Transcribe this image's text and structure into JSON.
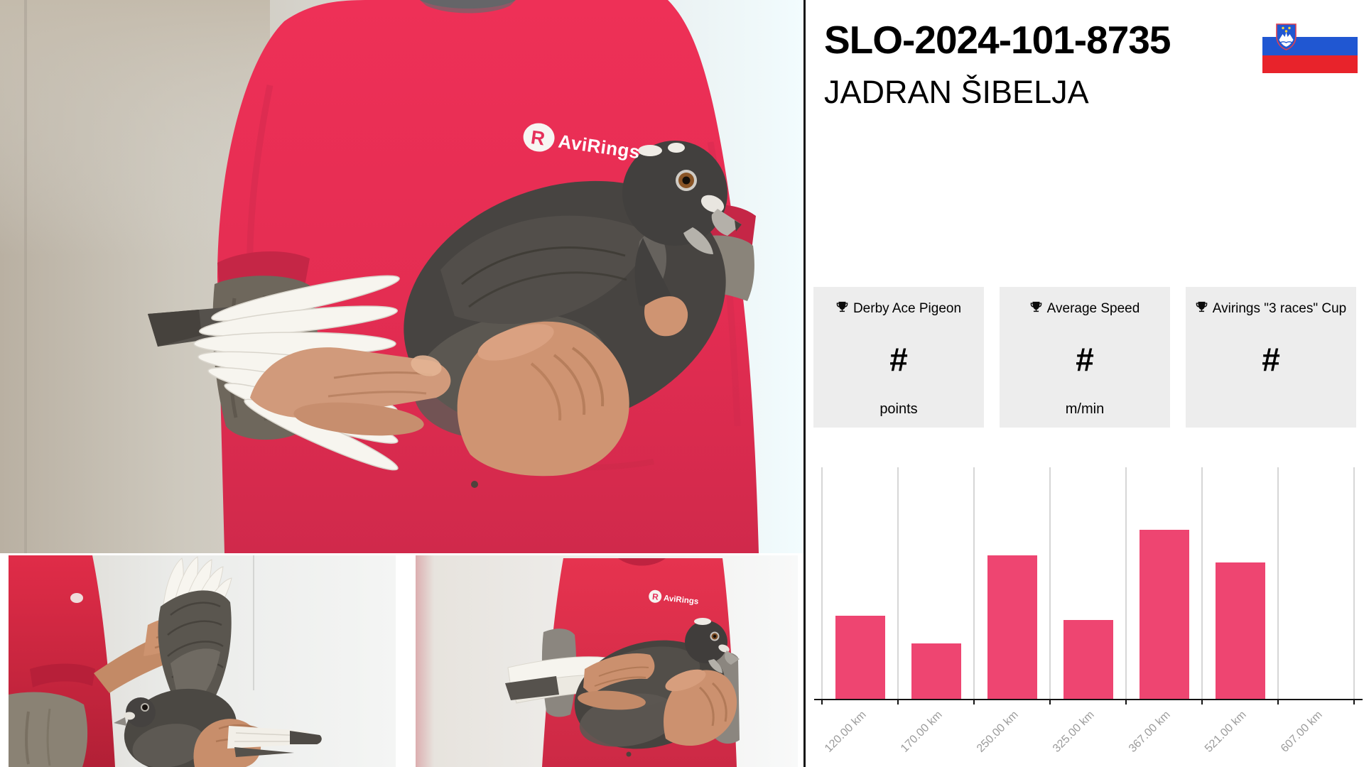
{
  "page": {
    "ring_number": "SLO-2024-101-8735",
    "owner_name": "JADRAN ŠIBELJA"
  },
  "brand": {
    "name": "AviRings",
    "initial": "R",
    "accent_color": "#e5305a"
  },
  "flag": {
    "country": "Slovenia",
    "white": "#ffffff",
    "blue": "#2057d2",
    "red": "#e8232b"
  },
  "stats": {
    "card_bg": "#ededed",
    "cards": [
      {
        "icon": "trophy",
        "label": "Derby Ace Pigeon",
        "value": "#",
        "unit": "points"
      },
      {
        "icon": "trophy",
        "label": "Average Speed",
        "value": "#",
        "unit": "m/min"
      },
      {
        "icon": "trophy",
        "label": "Avirings \"3 races\" Cup",
        "value": "#",
        "unit": ""
      }
    ]
  },
  "chart_data": {
    "type": "bar",
    "categories": [
      "120.00 km",
      "170.00 km",
      "250.00 km",
      "325.00 km",
      "367.00 km",
      "521.00 km",
      "607.00 km"
    ],
    "values": [
      36,
      24,
      62,
      34,
      73,
      59,
      0
    ],
    "title": "",
    "xlabel": "",
    "ylabel": "",
    "ylim": [
      0,
      100
    ],
    "y_axis_labels": "none",
    "legend": "none",
    "grid": "vertical category separators only",
    "bar_color": "#ee4571",
    "gridline_color": "#d6d6d6",
    "tick_label_color": "#9b9b9b",
    "note": "no numeric y-axis shown; values are relative bar heights as % of plot height"
  }
}
